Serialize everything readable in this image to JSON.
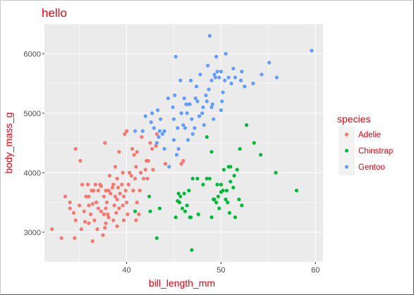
{
  "chart_data": {
    "type": "scatter",
    "title": "hello",
    "xlabel": "bill_length_mm",
    "ylabel": "body_mass_g",
    "xlim": [
      31.3,
      60.8
    ],
    "ylim": [
      2500,
      6500
    ],
    "x_ticks": [
      40,
      50,
      60
    ],
    "y_ticks": [
      3000,
      4000,
      5000,
      6000
    ],
    "grid": true,
    "legend": {
      "title": "species",
      "position": "right"
    },
    "colors": {
      "text": "#e8000d",
      "panel": "#ebebeb",
      "grid": "#ffffff"
    },
    "series": [
      {
        "name": "Adelie",
        "color": "#f8766d",
        "points": [
          [
            32.1,
            3050
          ],
          [
            33.1,
            2900
          ],
          [
            33.5,
            3600
          ],
          [
            34.0,
            3400
          ],
          [
            34.4,
            3325
          ],
          [
            34.5,
            2900
          ],
          [
            34.6,
            3200
          ],
          [
            34.6,
            4400
          ],
          [
            35.0,
            3450
          ],
          [
            35.1,
            4200
          ],
          [
            35.2,
            3050
          ],
          [
            35.3,
            3800
          ],
          [
            35.5,
            3350
          ],
          [
            35.6,
            3175
          ],
          [
            35.7,
            3600
          ],
          [
            35.9,
            3800
          ],
          [
            36.0,
            3450
          ],
          [
            36.0,
            3150
          ],
          [
            36.2,
            3300
          ],
          [
            36.3,
            3700
          ],
          [
            36.4,
            2850
          ],
          [
            36.4,
            3475
          ],
          [
            36.5,
            3700
          ],
          [
            36.6,
            3200
          ],
          [
            36.7,
            3800
          ],
          [
            36.8,
            3500
          ],
          [
            36.9,
            3050
          ],
          [
            37.0,
            3400
          ],
          [
            37.2,
            3800
          ],
          [
            37.3,
            3775
          ],
          [
            37.3,
            3350
          ],
          [
            37.5,
            2950
          ],
          [
            37.6,
            3300
          ],
          [
            37.6,
            3600
          ],
          [
            37.7,
            3075
          ],
          [
            37.7,
            4500
          ],
          [
            37.8,
            3700
          ],
          [
            37.8,
            3400
          ],
          [
            37.8,
            3150
          ],
          [
            37.9,
            3500
          ],
          [
            38.1,
            3700
          ],
          [
            38.1,
            3250
          ],
          [
            38.2,
            3950
          ],
          [
            38.3,
            3650
          ],
          [
            38.5,
            3750
          ],
          [
            38.6,
            3800
          ],
          [
            38.6,
            3200
          ],
          [
            38.7,
            3450
          ],
          [
            38.8,
            3600
          ],
          [
            38.8,
            4100
          ],
          [
            38.9,
            3325
          ],
          [
            39.0,
            3900
          ],
          [
            39.0,
            3550
          ],
          [
            39.1,
            3750
          ],
          [
            39.2,
            4350
          ],
          [
            39.2,
            3400
          ],
          [
            39.3,
            3650
          ],
          [
            39.5,
            3800
          ],
          [
            39.6,
            3450
          ],
          [
            39.6,
            4000
          ],
          [
            39.7,
            3600
          ],
          [
            39.7,
            3200
          ],
          [
            39.8,
            4650
          ],
          [
            39.9,
            3700
          ],
          [
            40.0,
            4700
          ],
          [
            40.1,
            3300
          ],
          [
            40.2,
            3800
          ],
          [
            40.3,
            4000
          ],
          [
            40.5,
            3950
          ],
          [
            40.6,
            4400
          ],
          [
            40.7,
            3700
          ],
          [
            40.8,
            4300
          ],
          [
            40.9,
            3900
          ],
          [
            41.0,
            4100
          ],
          [
            41.1,
            4350
          ],
          [
            41.1,
            3500
          ],
          [
            41.3,
            3300
          ],
          [
            41.4,
            3700
          ],
          [
            41.5,
            4000
          ],
          [
            41.6,
            4600
          ],
          [
            41.8,
            3900
          ],
          [
            42.0,
            4050
          ],
          [
            42.1,
            4200
          ],
          [
            42.2,
            3900
          ],
          [
            42.3,
            4200
          ],
          [
            42.5,
            4500
          ],
          [
            42.7,
            4400
          ],
          [
            42.8,
            4050
          ],
          [
            43.1,
            4450
          ],
          [
            43.2,
            4650
          ],
          [
            44.1,
            4150
          ],
          [
            45.8,
            4150
          ],
          [
            46.0,
            4200
          ],
          [
            34.0,
            3500
          ],
          [
            36.0,
            3600
          ],
          [
            37.0,
            3700
          ],
          [
            38.0,
            3300
          ],
          [
            39.0,
            3100
          ],
          [
            40.0,
            3500
          ],
          [
            41.0,
            3200
          ]
        ]
      },
      {
        "name": "Chinstrap",
        "color": "#00ba38",
        "points": [
          [
            40.9,
            3350
          ],
          [
            42.4,
            3600
          ],
          [
            42.5,
            3350
          ],
          [
            43.2,
            2900
          ],
          [
            43.5,
            3400
          ],
          [
            45.2,
            3250
          ],
          [
            45.4,
            3525
          ],
          [
            45.5,
            3650
          ],
          [
            45.6,
            3500
          ],
          [
            45.7,
            3600
          ],
          [
            45.9,
            3400
          ],
          [
            46.1,
            3650
          ],
          [
            46.2,
            3350
          ],
          [
            46.4,
            3450
          ],
          [
            46.6,
            3700
          ],
          [
            46.7,
            3250
          ],
          [
            46.8,
            3250
          ],
          [
            46.9,
            2700
          ],
          [
            47.0,
            3900
          ],
          [
            47.5,
            3900
          ],
          [
            47.6,
            3300
          ],
          [
            48.1,
            3800
          ],
          [
            48.5,
            3900
          ],
          [
            48.8,
            3900
          ],
          [
            49.0,
            3250
          ],
          [
            49.2,
            3550
          ],
          [
            49.3,
            3550
          ],
          [
            49.5,
            3500
          ],
          [
            49.6,
            3800
          ],
          [
            49.7,
            3600
          ],
          [
            49.8,
            3400
          ],
          [
            50.0,
            3675
          ],
          [
            50.2,
            3700
          ],
          [
            50.3,
            4050
          ],
          [
            50.5,
            3550
          ],
          [
            50.6,
            3700
          ],
          [
            50.7,
            3500
          ],
          [
            50.8,
            4100
          ],
          [
            50.9,
            3325
          ],
          [
            51.0,
            4100
          ],
          [
            51.3,
            3750
          ],
          [
            51.4,
            3950
          ],
          [
            51.5,
            3250
          ],
          [
            51.7,
            4050
          ],
          [
            51.9,
            3550
          ],
          [
            52.0,
            4400
          ],
          [
            52.2,
            3450
          ],
          [
            52.7,
            4800
          ],
          [
            53.5,
            4500
          ],
          [
            54.2,
            4300
          ],
          [
            55.8,
            4000
          ],
          [
            58.0,
            3700
          ],
          [
            48.5,
            4600
          ],
          [
            49.0,
            4350
          ],
          [
            50.0,
            3800
          ],
          [
            51.0,
            3850
          ]
        ]
      },
      {
        "name": "Gentoo",
        "color": "#619cff",
        "points": [
          [
            40.9,
            4700
          ],
          [
            41.7,
            4700
          ],
          [
            42.0,
            4950
          ],
          [
            42.6,
            4850
          ],
          [
            42.7,
            5000
          ],
          [
            42.9,
            4750
          ],
          [
            43.2,
            4500
          ],
          [
            43.3,
            5050
          ],
          [
            43.4,
            4600
          ],
          [
            43.5,
            4700
          ],
          [
            43.6,
            4900
          ],
          [
            43.8,
            4650
          ],
          [
            44.0,
            4700
          ],
          [
            44.4,
            5250
          ],
          [
            44.5,
            4100
          ],
          [
            44.9,
            5100
          ],
          [
            45.0,
            4900
          ],
          [
            45.1,
            5300
          ],
          [
            45.2,
            5950
          ],
          [
            45.3,
            4300
          ],
          [
            45.4,
            4750
          ],
          [
            45.5,
            4400
          ],
          [
            45.7,
            5550
          ],
          [
            45.8,
            5000
          ],
          [
            46.1,
            5250
          ],
          [
            46.2,
            4750
          ],
          [
            46.3,
            5150
          ],
          [
            46.4,
            5000
          ],
          [
            46.5,
            4550
          ],
          [
            46.6,
            5150
          ],
          [
            46.7,
            5150
          ],
          [
            46.8,
            5550
          ],
          [
            46.9,
            4900
          ],
          [
            47.2,
            4750
          ],
          [
            47.3,
            5250
          ],
          [
            47.4,
            5450
          ],
          [
            47.5,
            5200
          ],
          [
            47.7,
            4950
          ],
          [
            47.8,
            5650
          ],
          [
            48.1,
            5100
          ],
          [
            48.2,
            4800
          ],
          [
            48.4,
            5300
          ],
          [
            48.5,
            5200
          ],
          [
            48.6,
            5800
          ],
          [
            48.7,
            5400
          ],
          [
            48.8,
            6300
          ],
          [
            49.0,
            5550
          ],
          [
            49.1,
            5150
          ],
          [
            49.2,
            4900
          ],
          [
            49.3,
            5650
          ],
          [
            49.4,
            5600
          ],
          [
            49.5,
            5950
          ],
          [
            49.6,
            5700
          ],
          [
            49.8,
            5600
          ],
          [
            50.0,
            5700
          ],
          [
            50.1,
            5200
          ],
          [
            50.2,
            5350
          ],
          [
            50.4,
            5550
          ],
          [
            50.5,
            6000
          ],
          [
            50.8,
            5600
          ],
          [
            51.1,
            5500
          ],
          [
            51.3,
            5750
          ],
          [
            51.5,
            5600
          ],
          [
            52.1,
            5550
          ],
          [
            52.2,
            5700
          ],
          [
            52.5,
            5450
          ],
          [
            53.4,
            5500
          ],
          [
            54.3,
            5650
          ],
          [
            55.1,
            5850
          ],
          [
            55.9,
            5600
          ],
          [
            59.6,
            6050
          ],
          [
            44.0,
            4400
          ],
          [
            45.0,
            4550
          ],
          [
            46.0,
            4800
          ],
          [
            47.0,
            4650
          ],
          [
            48.0,
            5000
          ],
          [
            49.0,
            5100
          ],
          [
            50.0,
            5050
          ]
        ]
      }
    ]
  }
}
